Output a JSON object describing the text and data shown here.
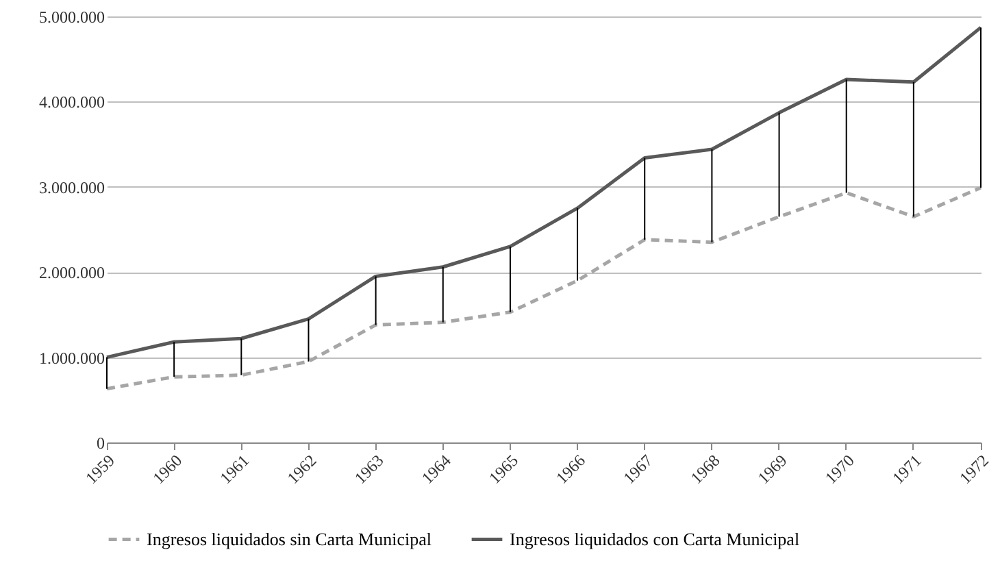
{
  "chart_data": {
    "type": "line",
    "categories": [
      "1959",
      "1960",
      "1961",
      "1962",
      "1963",
      "1964",
      "1965",
      "1966",
      "1967",
      "1968",
      "1969",
      "1970",
      "1971",
      "1972"
    ],
    "series": [
      {
        "name": "Ingresos liquidados  sin Carta Municipal",
        "color": "#a6a6a6",
        "line_style": "dashed",
        "values": [
          630000,
          770000,
          790000,
          950000,
          1380000,
          1410000,
          1530000,
          1900000,
          2380000,
          2350000,
          2650000,
          2930000,
          2650000,
          2990000
        ],
        "errors": [
          [
            630000,
            1000000
          ],
          [
            770000,
            1180000
          ],
          [
            790000,
            1220000
          ],
          [
            950000,
            1450000
          ],
          [
            1380000,
            1950000
          ],
          [
            1410000,
            2060000
          ],
          [
            1530000,
            2300000
          ],
          [
            1900000,
            2750000
          ],
          [
            2380000,
            3340000
          ],
          [
            2350000,
            3440000
          ],
          [
            2650000,
            3870000
          ],
          [
            2930000,
            4260000
          ],
          [
            2650000,
            4230000
          ],
          [
            2990000,
            4870000
          ]
        ]
      },
      {
        "name": "Ingresos liquidados  con Carta Municipal",
        "color": "#595959",
        "line_style": "solid",
        "values": [
          1000000,
          1180000,
          1220000,
          1450000,
          1950000,
          2060000,
          2300000,
          2750000,
          3340000,
          3440000,
          3870000,
          4260000,
          4230000,
          4870000
        ]
      }
    ],
    "ylim": [
      0,
      5000000
    ],
    "yticks": [
      {
        "value": 0,
        "label": "0"
      },
      {
        "value": 1000000,
        "label": "1.000.000"
      },
      {
        "value": 2000000,
        "label": "2.000.000"
      },
      {
        "value": 3000000,
        "label": "3.000.000"
      },
      {
        "value": 4000000,
        "label": "4.000.000"
      },
      {
        "value": 5000000,
        "label": "5.000.000"
      }
    ],
    "grid": "y",
    "legend": "bottom",
    "marker": "none"
  }
}
